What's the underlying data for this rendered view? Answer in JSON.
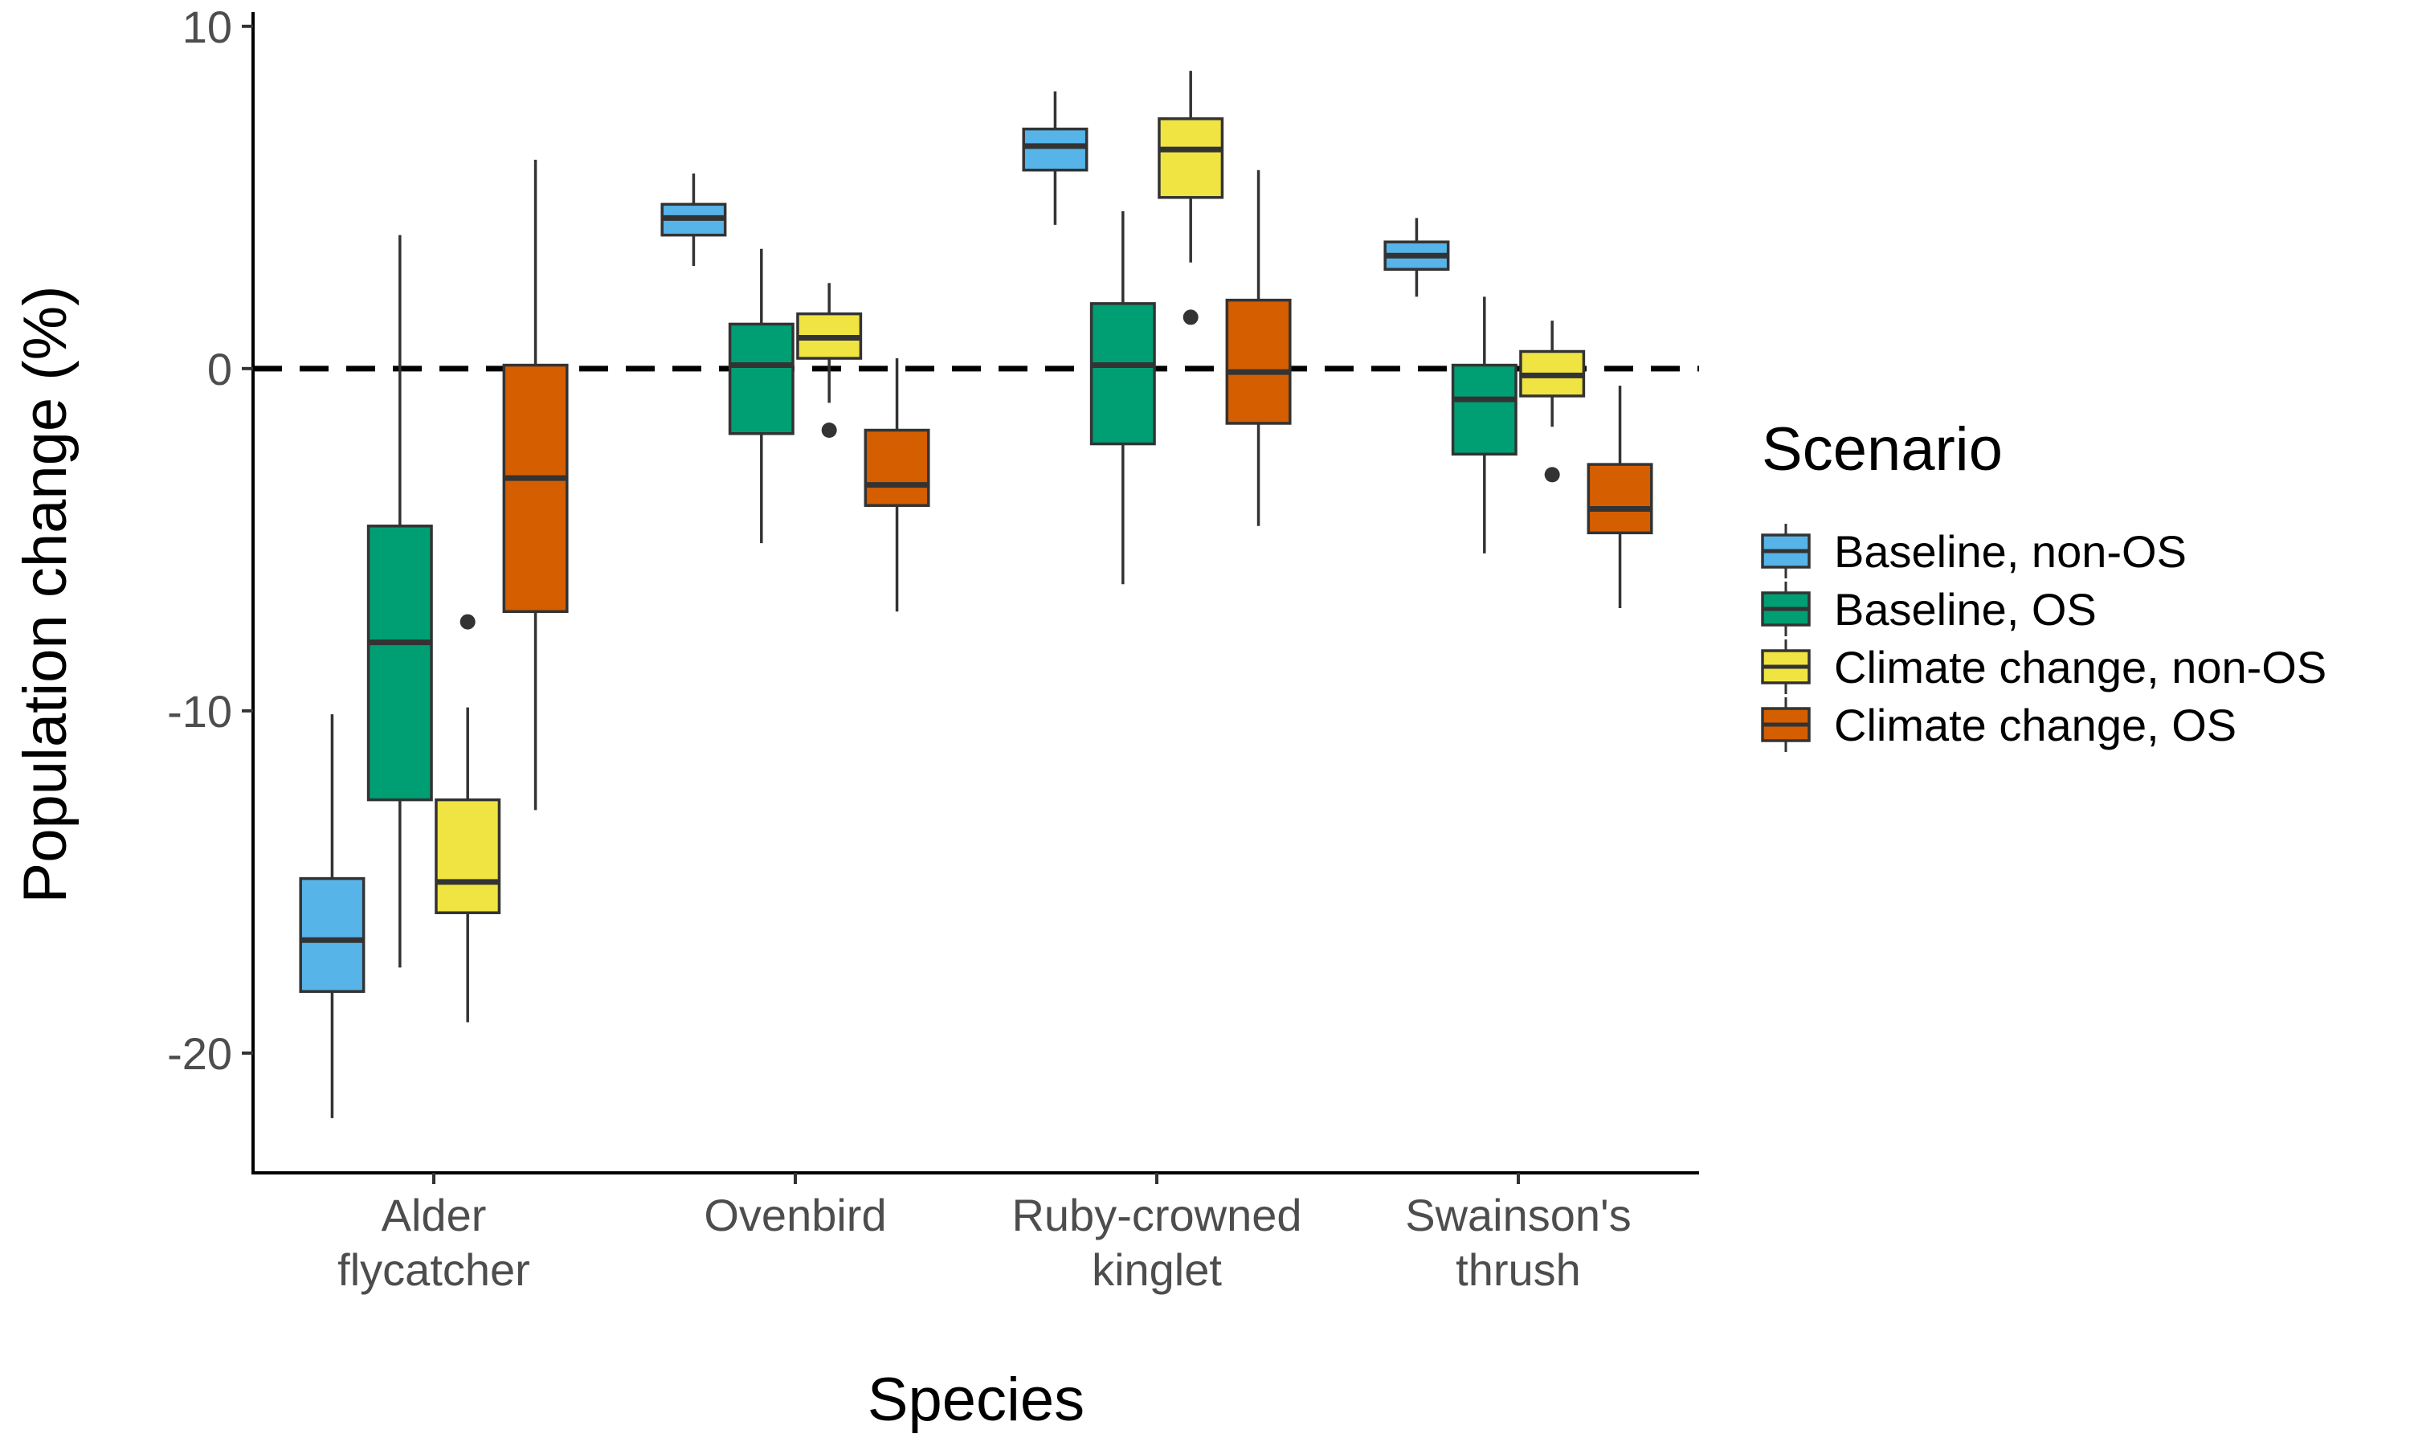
{
  "chart_data": {
    "type": "boxplot",
    "xlabel": "Species",
    "ylabel": "Population change (%)",
    "ylim": [
      -23.5,
      10.3
    ],
    "yticks": [
      10,
      0,
      -10,
      -20
    ],
    "ytick_labels": [
      "10",
      "0",
      "-10",
      "-20"
    ],
    "reference_line": {
      "y": 0,
      "style": "dashed"
    },
    "grid": false,
    "categories": [
      [
        "Alder",
        "flycatcher"
      ],
      [
        "Ovenbird"
      ],
      [
        "Ruby-crowned",
        "kinglet"
      ],
      [
        "Swainson's",
        "thrush"
      ]
    ],
    "legend": {
      "title": "Scenario",
      "position": "right"
    },
    "series": [
      {
        "name": "Baseline, non-OS",
        "color": "#56B4E9",
        "boxes": [
          {
            "whisker_low": -21.9,
            "q1": -18.2,
            "median": -16.7,
            "q3": -14.9,
            "whisker_high": -10.1,
            "outliers": []
          },
          {
            "whisker_low": 3.0,
            "q1": 3.9,
            "median": 4.4,
            "q3": 4.8,
            "whisker_high": 5.7,
            "outliers": []
          },
          {
            "whisker_low": 4.2,
            "q1": 5.8,
            "median": 6.5,
            "q3": 7.0,
            "whisker_high": 8.1,
            "outliers": []
          },
          {
            "whisker_low": 2.1,
            "q1": 2.9,
            "median": 3.3,
            "q3": 3.7,
            "whisker_high": 4.4,
            "outliers": []
          }
        ]
      },
      {
        "name": "Baseline, OS",
        "color": "#009E73",
        "boxes": [
          {
            "whisker_low": -17.5,
            "q1": -12.6,
            "median": -8.0,
            "q3": -4.6,
            "whisker_high": 3.9,
            "outliers": []
          },
          {
            "whisker_low": -5.1,
            "q1": -1.9,
            "median": 0.1,
            "q3": 1.3,
            "whisker_high": 3.5,
            "outliers": []
          },
          {
            "whisker_low": -6.3,
            "q1": -2.2,
            "median": 0.1,
            "q3": 1.9,
            "whisker_high": 4.6,
            "outliers": []
          },
          {
            "whisker_low": -5.4,
            "q1": -2.5,
            "median": -0.9,
            "q3": 0.1,
            "whisker_high": 2.1,
            "outliers": []
          }
        ]
      },
      {
        "name": "Climate change, non-OS",
        "color": "#F0E442",
        "boxes": [
          {
            "whisker_low": -19.1,
            "q1": -15.9,
            "median": -15.0,
            "q3": -12.6,
            "whisker_high": -9.9,
            "outliers": [
              -7.4
            ]
          },
          {
            "whisker_low": -1.0,
            "q1": 0.3,
            "median": 0.9,
            "q3": 1.6,
            "whisker_high": 2.5,
            "outliers": [
              -1.8
            ]
          },
          {
            "whisker_low": 3.1,
            "q1": 5.0,
            "median": 6.4,
            "q3": 7.3,
            "whisker_high": 8.7,
            "outliers": [
              1.5
            ]
          },
          {
            "whisker_low": -1.7,
            "q1": -0.8,
            "median": -0.2,
            "q3": 0.5,
            "whisker_high": 1.4,
            "outliers": [
              -3.1
            ]
          }
        ]
      },
      {
        "name": "Climate change, OS",
        "color": "#D55E00",
        "boxes": [
          {
            "whisker_low": -12.9,
            "q1": -7.1,
            "median": -3.2,
            "q3": 0.1,
            "whisker_high": 6.1,
            "outliers": []
          },
          {
            "whisker_low": -7.1,
            "q1": -4.0,
            "median": -3.4,
            "q3": -1.8,
            "whisker_high": 0.3,
            "outliers": []
          },
          {
            "whisker_low": -4.6,
            "q1": -1.6,
            "median": -0.1,
            "q3": 2.0,
            "whisker_high": 5.8,
            "outliers": []
          },
          {
            "whisker_low": -7.0,
            "q1": -4.8,
            "median": -4.1,
            "q3": -2.8,
            "whisker_high": -0.5,
            "outliers": []
          }
        ]
      }
    ]
  }
}
